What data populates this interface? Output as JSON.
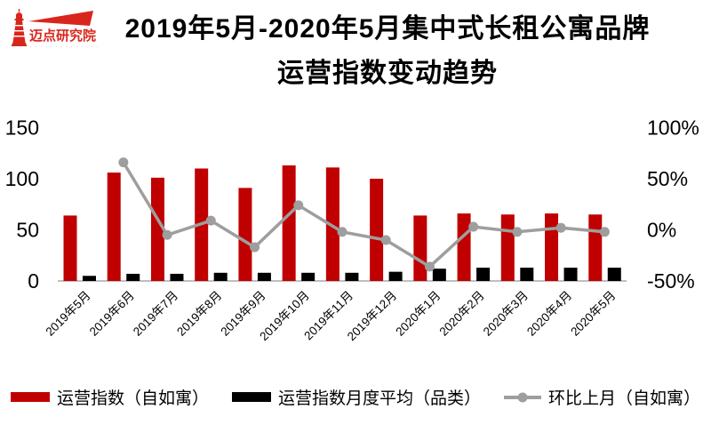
{
  "logo": {
    "name": "迈点研究院",
    "tagline": "· · · · · · ·   · · · · · · ·",
    "color": "#D9261C"
  },
  "title": {
    "line1": "2019年5月-2020年5月集中式长租公寓品牌",
    "line2": "运营指数变动趋势"
  },
  "chart_data": {
    "type": "bar",
    "title": "2019年5月-2020年5月集中式长租公寓品牌运营指数变动趋势",
    "categories": [
      "2019年5月",
      "2019年6月",
      "2019年7月",
      "2019年8月",
      "2019年9月",
      "2019年10月",
      "2019年11月",
      "2019年12月",
      "2020年1月",
      "2020年2月",
      "2020年3月",
      "2020年4月",
      "2020年5月"
    ],
    "series": [
      {
        "name": "运营指数（自如寓）",
        "type": "bar",
        "axis": "left",
        "color": "#C00000",
        "values": [
          64,
          106,
          101,
          110,
          91,
          113,
          111,
          100,
          64,
          66,
          65,
          66,
          65
        ]
      },
      {
        "name": "运营指数月度平均（品类）",
        "type": "bar",
        "axis": "left",
        "color": "#000000",
        "values": [
          5,
          7,
          7,
          8,
          8,
          8,
          8,
          9,
          12,
          13,
          13,
          13,
          13
        ]
      },
      {
        "name": "环比上月（自如寓）",
        "type": "line",
        "axis": "right",
        "color": "#9E9E9E",
        "values": [
          null,
          66,
          -5,
          9,
          -17,
          24,
          -2,
          -10,
          -36,
          3,
          -2,
          2,
          -2
        ]
      }
    ],
    "left_axis": {
      "tick_values": [
        0,
        50,
        100,
        150
      ],
      "tick_labels": [
        "0",
        "50",
        "100",
        "150"
      ],
      "range": [
        0,
        150
      ]
    },
    "right_axis": {
      "tick_values": [
        -50,
        0,
        50,
        100
      ],
      "tick_labels": [
        "-50%",
        "0%",
        "50%",
        "100%"
      ],
      "range": [
        -50,
        100
      ]
    },
    "grid": false,
    "legend_position": "bottom",
    "baseline_color": "#BFBFBF"
  }
}
